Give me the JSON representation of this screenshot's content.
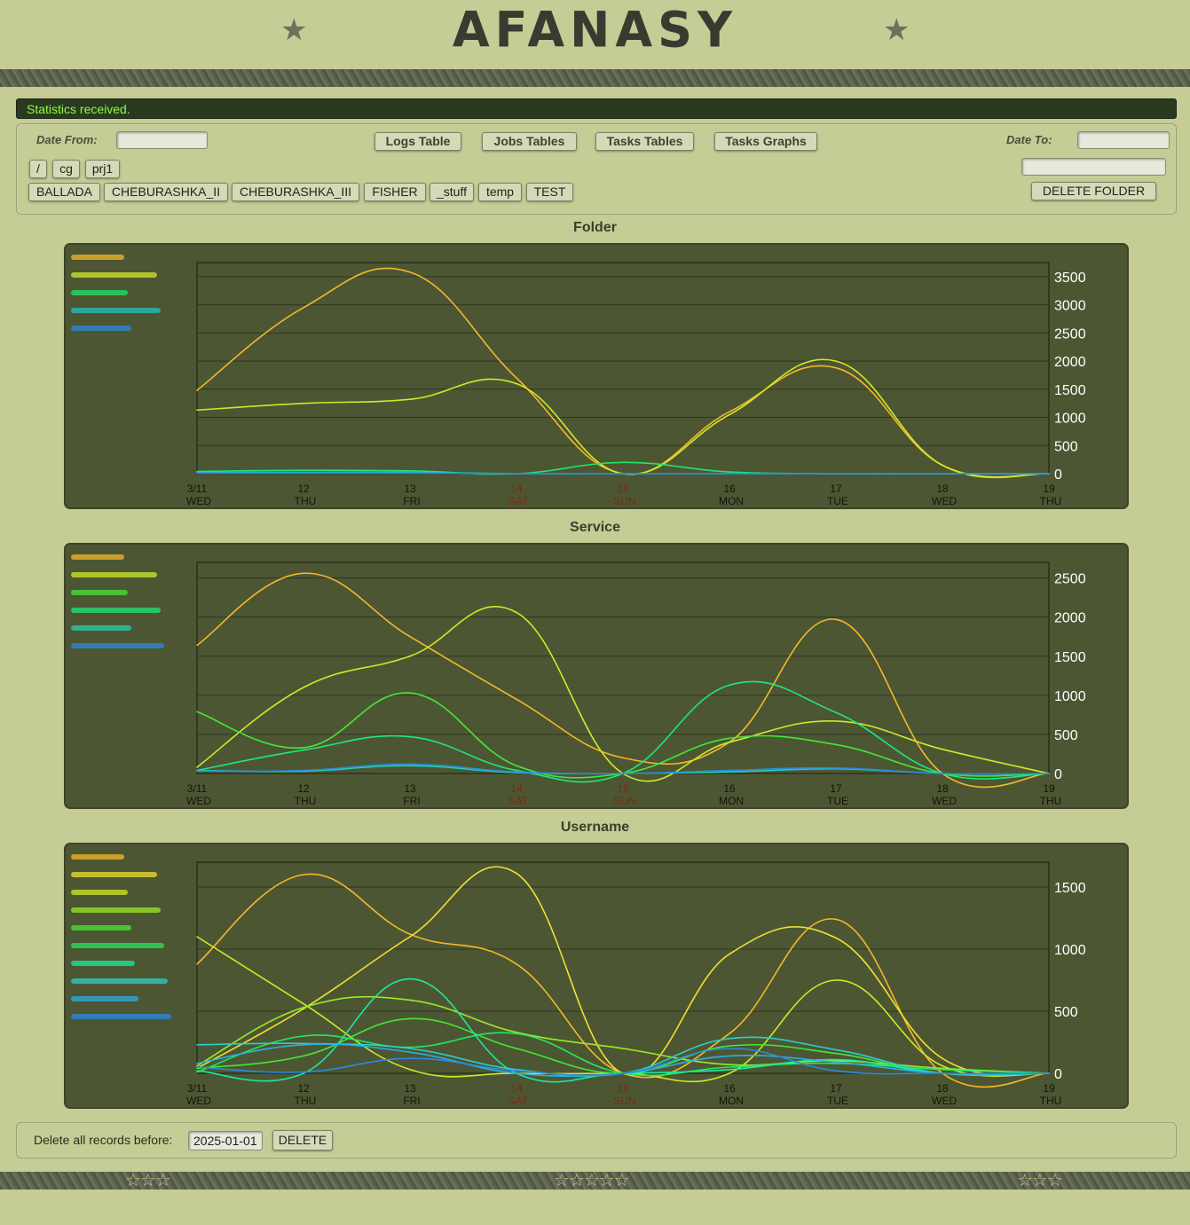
{
  "app": {
    "title": "AFANASY",
    "stars_left": "☆☆☆",
    "stars_mid": "☆☆☆☆☆",
    "stars_right": "☆☆☆"
  },
  "status": {
    "message": "Statistics received."
  },
  "filters": {
    "date_from_label": "Date From:",
    "date_to_label": "Date To:",
    "date_from": "",
    "date_to": "",
    "folder_input": ""
  },
  "toolbar": {
    "logs_table": "Logs Table",
    "jobs_tables": "Jobs Tables",
    "tasks_tables": "Tasks Tables",
    "tasks_graphs": "Tasks Graphs"
  },
  "path": [
    "/",
    "cg",
    "prj1"
  ],
  "folders": [
    "BALLADA",
    "CHEBURASHKA_II",
    "CHEBURASHKA_III",
    "FISHER",
    "_stuff",
    "temp",
    "TEST"
  ],
  "delete_folder_label": "DELETE FOLDER",
  "cleanup": {
    "label": "Delete all records before:",
    "date": "2025-01-01",
    "button": "DELETE"
  },
  "chart_data": [
    {
      "type": "line",
      "title": "Folder",
      "x": [
        "3/11 WED",
        "12 THU",
        "13 FRI",
        "14 SAT",
        "15 SUN",
        "16 MON",
        "17 TUE",
        "18 WED",
        "19 THU"
      ],
      "weekend": [
        3,
        4
      ],
      "ylim": [
        0,
        3750
      ],
      "yticks": [
        0,
        500,
        1000,
        1500,
        2000,
        2500,
        3000,
        3500
      ],
      "series": [
        {
          "color": "#f4b82a",
          "values": [
            1480,
            2950,
            3580,
            1700,
            0,
            1100,
            1880,
            150,
            0
          ]
        },
        {
          "color": "#cfe928",
          "values": [
            1130,
            1250,
            1320,
            1600,
            0,
            1050,
            2000,
            150,
            0
          ]
        },
        {
          "color": "#1ee86a",
          "values": [
            40,
            60,
            50,
            0,
            200,
            30,
            0,
            0,
            0
          ]
        },
        {
          "color": "#27c0c0",
          "values": [
            20,
            25,
            25,
            0,
            0,
            0,
            0,
            0,
            0
          ]
        },
        {
          "color": "#2a8ae0",
          "values": [
            10,
            10,
            10,
            0,
            0,
            0,
            0,
            0,
            0
          ]
        }
      ]
    },
    {
      "type": "line",
      "title": "Service",
      "x": [
        "3/11 WED",
        "12 THU",
        "13 FRI",
        "14 SAT",
        "15 SUN",
        "16 MON",
        "17 TUE",
        "18 WED",
        "19 THU"
      ],
      "weekend": [
        3,
        4
      ],
      "ylim": [
        0,
        2700
      ],
      "yticks": [
        0,
        500,
        1000,
        1500,
        2000,
        2500
      ],
      "series": [
        {
          "color": "#f4b82a",
          "values": [
            1640,
            2560,
            1750,
            950,
            200,
            400,
            1970,
            0,
            0
          ]
        },
        {
          "color": "#cfe928",
          "values": [
            80,
            1100,
            1500,
            2060,
            0,
            400,
            670,
            310,
            0
          ]
        },
        {
          "color": "#43e836",
          "values": [
            790,
            330,
            1030,
            100,
            0,
            450,
            370,
            0,
            0
          ]
        },
        {
          "color": "#1ee87a",
          "values": [
            40,
            300,
            470,
            40,
            0,
            1130,
            780,
            0,
            0
          ]
        },
        {
          "color": "#27d0b0",
          "values": [
            40,
            30,
            100,
            10,
            0,
            20,
            60,
            0,
            0
          ]
        },
        {
          "color": "#2a8ae0",
          "values": [
            30,
            40,
            120,
            20,
            0,
            40,
            70,
            0,
            0
          ]
        }
      ]
    },
    {
      "type": "line",
      "title": "Username",
      "x": [
        "3/11 WED",
        "12 THU",
        "13 FRI",
        "14 SAT",
        "15 SUN",
        "16 MON",
        "17 TUE",
        "18 WED",
        "19 THU"
      ],
      "weekend": [
        3,
        4
      ],
      "ylim": [
        0,
        1700
      ],
      "yticks": [
        0,
        500,
        1000,
        1500
      ],
      "series": [
        {
          "color": "#f4b82a",
          "values": [
            880,
            1600,
            1120,
            880,
            0,
            320,
            1240,
            0,
            0
          ]
        },
        {
          "color": "#f0e030",
          "values": [
            40,
            520,
            1100,
            1610,
            0,
            960,
            1090,
            120,
            0
          ]
        },
        {
          "color": "#cfe928",
          "values": [
            1100,
            560,
            30,
            0,
            0,
            0,
            750,
            60,
            0
          ]
        },
        {
          "color": "#9aea28",
          "values": [
            60,
            530,
            590,
            330,
            200,
            70,
            100,
            40,
            0
          ]
        },
        {
          "color": "#43e836",
          "values": [
            40,
            140,
            440,
            200,
            0,
            220,
            160,
            0,
            0
          ]
        },
        {
          "color": "#22e860",
          "values": [
            10,
            300,
            210,
            320,
            0,
            50,
            80,
            30,
            0
          ]
        },
        {
          "color": "#1ee8a0",
          "values": [
            20,
            0,
            760,
            0,
            0,
            30,
            110,
            0,
            0
          ]
        },
        {
          "color": "#2ad0c8",
          "values": [
            230,
            240,
            200,
            30,
            0,
            280,
            190,
            0,
            0
          ]
        },
        {
          "color": "#2ab0e0",
          "values": [
            80,
            230,
            170,
            0,
            0,
            140,
            90,
            0,
            0
          ]
        },
        {
          "color": "#2a8ae0",
          "values": [
            50,
            10,
            120,
            20,
            0,
            200,
            20,
            0,
            0
          ]
        }
      ]
    }
  ]
}
